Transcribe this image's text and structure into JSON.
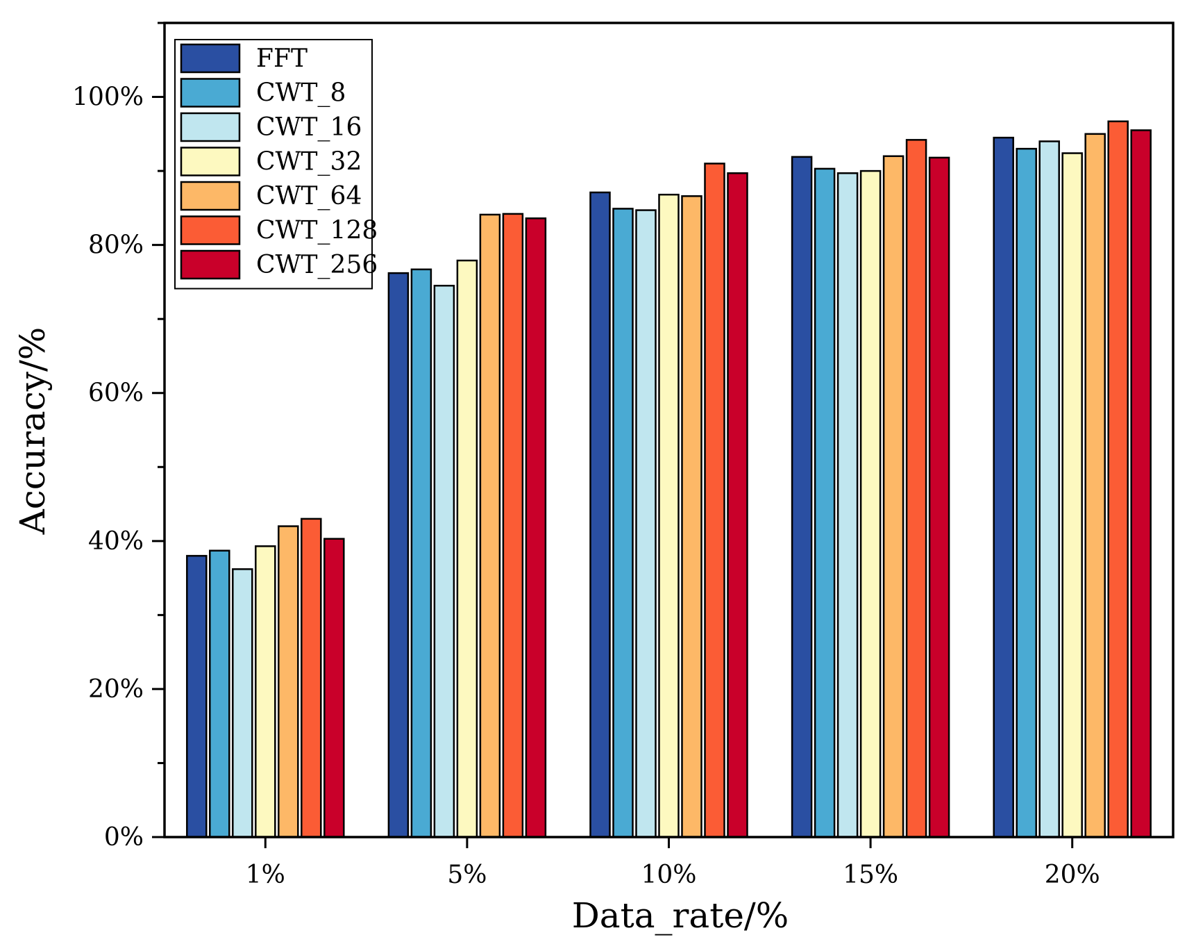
{
  "chart_data": {
    "type": "bar",
    "title": "",
    "xlabel": "Data_rate/%",
    "ylabel": "Accuracy/%",
    "categories": [
      "1%",
      "5%",
      "10%",
      "15%",
      "20%"
    ],
    "ylim": [
      0,
      110
    ],
    "yticks": [
      0,
      20,
      40,
      60,
      80,
      100
    ],
    "ytick_labels": [
      "0%",
      "20%",
      "40%",
      "60%",
      "80%",
      "100%"
    ],
    "legend_position": "top-left",
    "grid": false,
    "series": [
      {
        "name": "FFT",
        "color": "#2a4fa2",
        "values": [
          38.0,
          76.2,
          87.1,
          91.9,
          94.5
        ]
      },
      {
        "name": "CWT_8",
        "color": "#4aaad3",
        "values": [
          38.7,
          76.7,
          84.9,
          90.3,
          93.0
        ]
      },
      {
        "name": "CWT_16",
        "color": "#c0e6ef",
        "values": [
          36.2,
          74.5,
          84.7,
          89.7,
          94.0
        ]
      },
      {
        "name": "CWT_32",
        "color": "#fdf9c0",
        "values": [
          39.3,
          77.9,
          86.8,
          90.0,
          92.4
        ]
      },
      {
        "name": "CWT_64",
        "color": "#fdb867",
        "values": [
          42.0,
          84.1,
          86.6,
          92.0,
          95.0
        ]
      },
      {
        "name": "CWT_128",
        "color": "#fb5c35",
        "values": [
          43.0,
          84.2,
          91.0,
          94.2,
          96.7
        ]
      },
      {
        "name": "CWT_256",
        "color": "#c9002a",
        "values": [
          40.3,
          83.6,
          89.7,
          91.8,
          95.5
        ]
      }
    ]
  }
}
